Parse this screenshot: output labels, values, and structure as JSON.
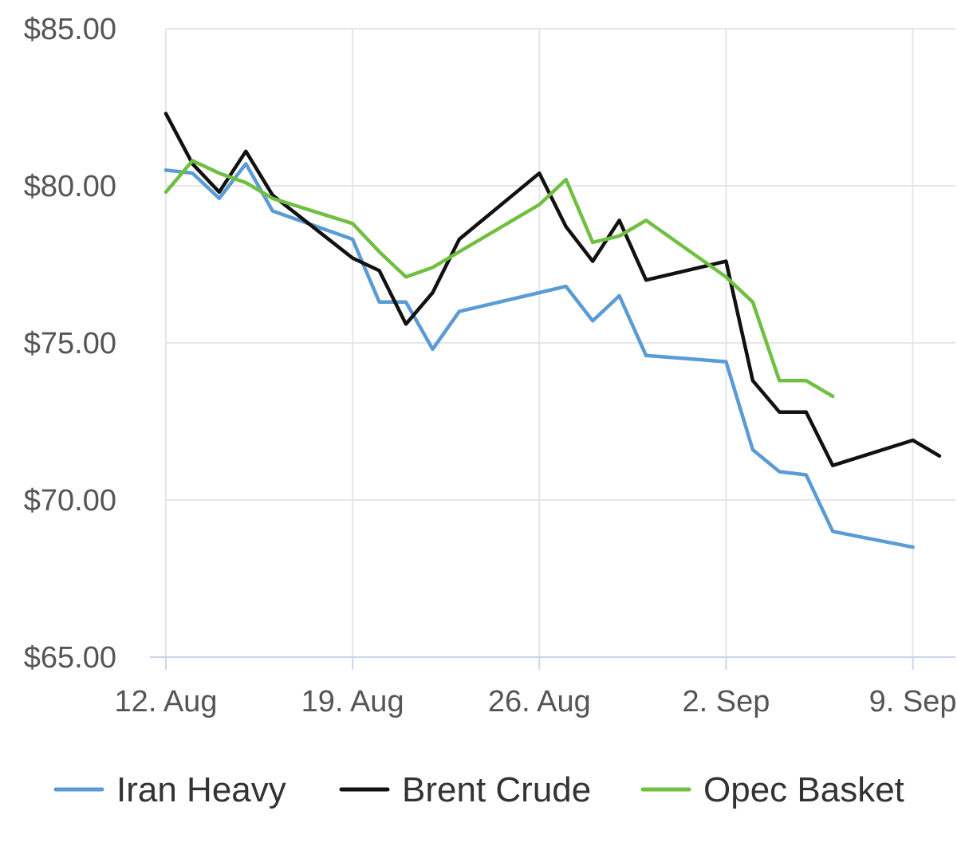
{
  "chart_data": {
    "type": "line",
    "title": "",
    "xlabel": "",
    "ylabel": "",
    "ylim": [
      65,
      85
    ],
    "y_ticks": [
      {
        "value": 65,
        "label": "$65.00"
      },
      {
        "value": 70,
        "label": "$70.00"
      },
      {
        "value": 75,
        "label": "$75.00"
      },
      {
        "value": 80,
        "label": "$80.00"
      },
      {
        "value": 85,
        "label": "$85.00"
      }
    ],
    "x_ticks": [
      {
        "value": "2024-08-12",
        "label": "12. Aug"
      },
      {
        "value": "2024-08-19",
        "label": "19. Aug"
      },
      {
        "value": "2024-08-26",
        "label": "26. Aug"
      },
      {
        "value": "2024-09-02",
        "label": "2. Sep"
      },
      {
        "value": "2024-09-09",
        "label": "9. Sep"
      }
    ],
    "xlim": [
      "2024-08-12",
      "2024-09-10"
    ],
    "grid": true,
    "legend_position": "bottom",
    "series": [
      {
        "name": "Iran Heavy",
        "color": "#5b9bd5",
        "points": [
          [
            "2024-08-12",
            80.5
          ],
          [
            "2024-08-13",
            80.4
          ],
          [
            "2024-08-14",
            79.6
          ],
          [
            "2024-08-15",
            80.7
          ],
          [
            "2024-08-16",
            79.2
          ],
          [
            "2024-08-19",
            78.3
          ],
          [
            "2024-08-20",
            76.3
          ],
          [
            "2024-08-21",
            76.3
          ],
          [
            "2024-08-22",
            74.8
          ],
          [
            "2024-08-23",
            76.0
          ],
          [
            "2024-08-26",
            76.6
          ],
          [
            "2024-08-27",
            76.8
          ],
          [
            "2024-08-28",
            75.7
          ],
          [
            "2024-08-29",
            76.5
          ],
          [
            "2024-08-30",
            74.6
          ],
          [
            "2024-09-02",
            74.4
          ],
          [
            "2024-09-03",
            71.6
          ],
          [
            "2024-09-04",
            70.9
          ],
          [
            "2024-09-05",
            70.8
          ],
          [
            "2024-09-06",
            69.0
          ],
          [
            "2024-09-09",
            68.5
          ]
        ]
      },
      {
        "name": "Brent Crude",
        "color": "#111111",
        "points": [
          [
            "2024-08-12",
            82.3
          ],
          [
            "2024-08-13",
            80.7
          ],
          [
            "2024-08-14",
            79.8
          ],
          [
            "2024-08-15",
            81.1
          ],
          [
            "2024-08-16",
            79.7
          ],
          [
            "2024-08-19",
            77.7
          ],
          [
            "2024-08-20",
            77.3
          ],
          [
            "2024-08-21",
            75.6
          ],
          [
            "2024-08-22",
            76.6
          ],
          [
            "2024-08-23",
            78.3
          ],
          [
            "2024-08-26",
            80.4
          ],
          [
            "2024-08-27",
            78.7
          ],
          [
            "2024-08-28",
            77.6
          ],
          [
            "2024-08-29",
            78.9
          ],
          [
            "2024-08-30",
            77.0
          ],
          [
            "2024-09-02",
            77.6
          ],
          [
            "2024-09-03",
            73.8
          ],
          [
            "2024-09-04",
            72.8
          ],
          [
            "2024-09-05",
            72.8
          ],
          [
            "2024-09-06",
            71.1
          ],
          [
            "2024-09-09",
            71.9
          ],
          [
            "2024-09-10",
            71.4
          ]
        ]
      },
      {
        "name": "Opec Basket",
        "color": "#70bf41",
        "points": [
          [
            "2024-08-12",
            79.8
          ],
          [
            "2024-08-13",
            80.8
          ],
          [
            "2024-08-14",
            80.4
          ],
          [
            "2024-08-15",
            80.1
          ],
          [
            "2024-08-16",
            79.6
          ],
          [
            "2024-08-19",
            78.8
          ],
          [
            "2024-08-20",
            77.9
          ],
          [
            "2024-08-21",
            77.1
          ],
          [
            "2024-08-22",
            77.4
          ],
          [
            "2024-08-23",
            77.9
          ],
          [
            "2024-08-26",
            79.4
          ],
          [
            "2024-08-27",
            80.2
          ],
          [
            "2024-08-28",
            78.2
          ],
          [
            "2024-08-29",
            78.4
          ],
          [
            "2024-08-30",
            78.9
          ],
          [
            "2024-09-02",
            77.1
          ],
          [
            "2024-09-03",
            76.3
          ],
          [
            "2024-09-04",
            73.8
          ],
          [
            "2024-09-05",
            73.8
          ],
          [
            "2024-09-06",
            73.3
          ]
        ]
      }
    ]
  }
}
